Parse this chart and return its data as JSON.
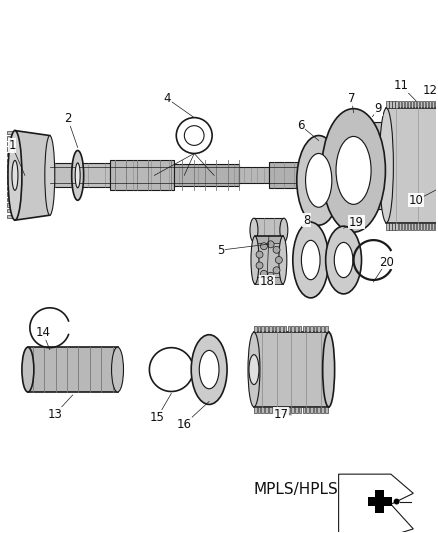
{
  "bg_color": "#ffffff",
  "fig_width": 4.38,
  "fig_height": 5.33,
  "dpi": 100,
  "line_color": "#1a1a1a",
  "text_color": "#111111",
  "label_fontsize": 8.5,
  "mpls_fontsize": 11
}
